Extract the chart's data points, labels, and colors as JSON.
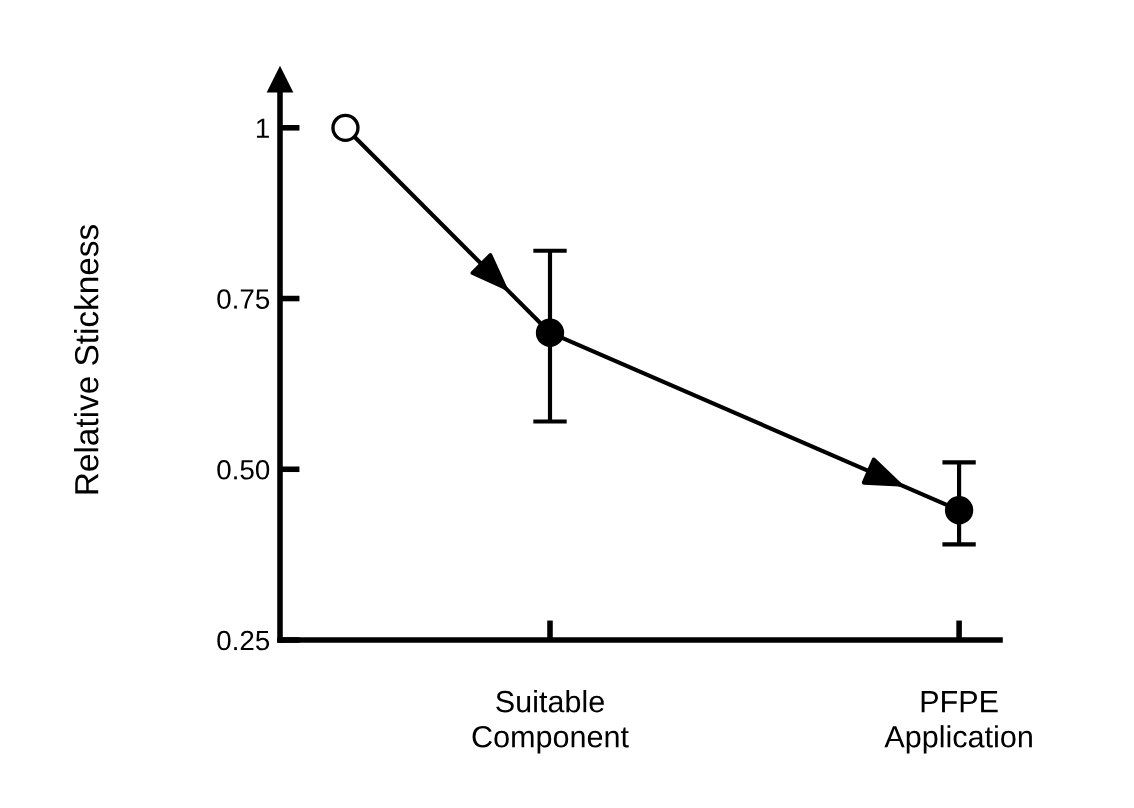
{
  "chart_data": {
    "type": "line",
    "ylabel": "Relative Stickness",
    "categories": [
      null,
      "Suitable\nComponent",
      null,
      "PFPE\nApplication"
    ],
    "series": [
      {
        "color": "#000000",
        "colors": [
          "#ffffff",
          "#000000",
          null,
          "#000000"
        ],
        "values": [
          1,
          0.7,
          null,
          0.44
        ],
        "errors": [
          null,
          [
            0.57,
            0.82
          ],
          null,
          [
            0.39,
            0.51
          ]
        ]
      }
    ],
    "ylim": [
      0.25,
      1.07
    ],
    "yticks": [
      1,
      0.75,
      {
        "value": 0.5,
        "label": "0.50"
      },
      0.25
    ],
    "marker": "circle",
    "line_style": "solid",
    "grid": false,
    "legend": false
  }
}
